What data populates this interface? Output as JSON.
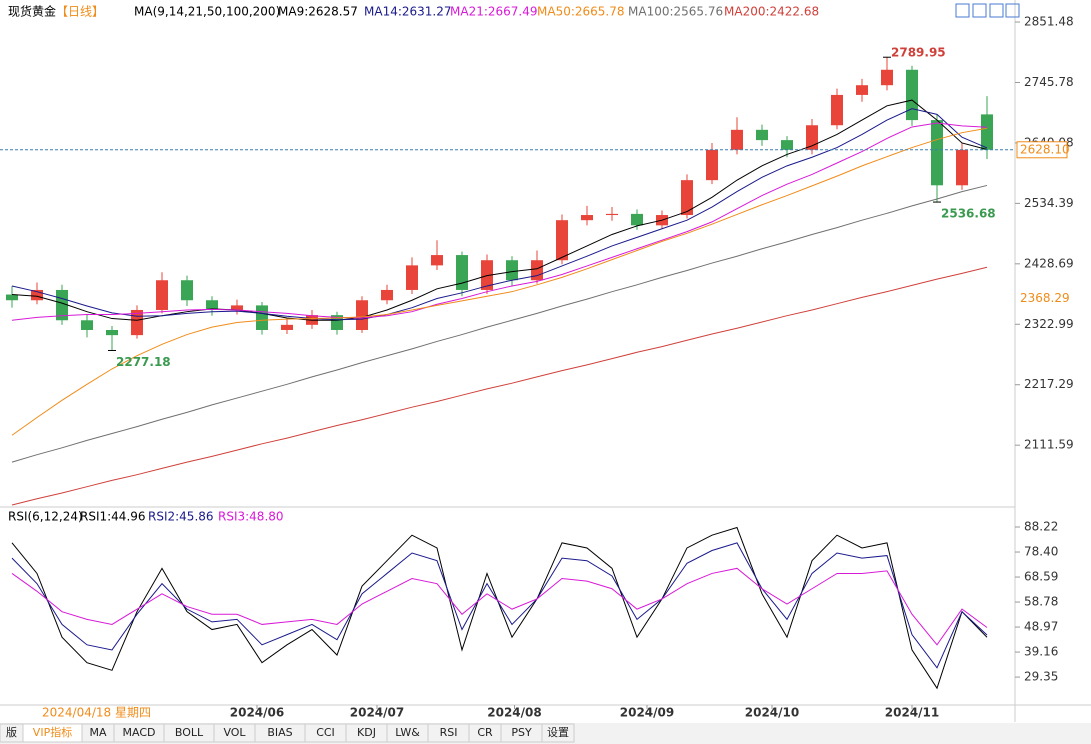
{
  "header": {
    "title": "现货黄金",
    "period": "【日线】",
    "ma_params": "MA(9,14,21,50,100,200)"
  },
  "chart_data": [
    {
      "type": "candlestick",
      "up_color": "#e8443a",
      "down_color": "#3aa655",
      "ohlc": [
        [
          2375,
          2390,
          2352,
          2365
        ],
        [
          2365,
          2396,
          2358,
          2383
        ],
        [
          2383,
          2392,
          2322,
          2330
        ],
        [
          2330,
          2340,
          2300,
          2313
        ],
        [
          2313,
          2320,
          2277.18,
          2304
        ],
        [
          2304,
          2356,
          2298,
          2348
        ],
        [
          2348,
          2414,
          2342,
          2400
        ],
        [
          2400,
          2408,
          2355,
          2365
        ],
        [
          2365,
          2372,
          2338,
          2348
        ],
        [
          2348,
          2366,
          2340,
          2356
        ],
        [
          2356,
          2362,
          2305,
          2313
        ],
        [
          2313,
          2332,
          2306,
          2322
        ],
        [
          2322,
          2348,
          2315,
          2339
        ],
        [
          2339,
          2345,
          2305,
          2313
        ],
        [
          2313,
          2372,
          2308,
          2365
        ],
        [
          2365,
          2392,
          2358,
          2383
        ],
        [
          2383,
          2440,
          2376,
          2426
        ],
        [
          2426,
          2470,
          2418,
          2444
        ],
        [
          2444,
          2450,
          2372,
          2383
        ],
        [
          2383,
          2445,
          2376,
          2435
        ],
        [
          2435,
          2442,
          2390,
          2400
        ],
        [
          2400,
          2452,
          2394,
          2435
        ],
        [
          2435,
          2515,
          2428,
          2505
        ],
        [
          2505,
          2530,
          2496,
          2514
        ],
        [
          2514,
          2528,
          2504,
          2516
        ],
        [
          2516,
          2524,
          2488,
          2496
        ],
        [
          2496,
          2522,
          2490,
          2514
        ],
        [
          2514,
          2585,
          2508,
          2575
        ],
        [
          2575,
          2640,
          2568,
          2628
        ],
        [
          2628,
          2685,
          2620,
          2663
        ],
        [
          2663,
          2672,
          2635,
          2645
        ],
        [
          2645,
          2652,
          2615,
          2628
        ],
        [
          2628,
          2682,
          2620,
          2671
        ],
        [
          2671,
          2735,
          2664,
          2724
        ],
        [
          2724,
          2752,
          2712,
          2741
        ],
        [
          2741,
          2789.95,
          2732,
          2768
        ],
        [
          2768,
          2775,
          2670,
          2680
        ],
        [
          2680,
          2690,
          2536.68,
          2566
        ],
        [
          2566,
          2640,
          2558,
          2628
        ],
        [
          2690,
          2722,
          2612,
          2628.1
        ]
      ],
      "series": [
        {
          "name": "MA9:2628.57",
          "color": "#000000",
          "values": [
            2375,
            2372,
            2360,
            2345,
            2333,
            2330,
            2338,
            2345,
            2350,
            2348,
            2342,
            2334,
            2330,
            2330,
            2335,
            2348,
            2365,
            2385,
            2395,
            2408,
            2415,
            2420,
            2440,
            2460,
            2480,
            2495,
            2505,
            2520,
            2545,
            2575,
            2600,
            2620,
            2635,
            2655,
            2680,
            2705,
            2715,
            2680,
            2640,
            2628.57
          ]
        },
        {
          "name": "MA14:2631.27",
          "color": "#1a1a8c",
          "values": [
            2390,
            2380,
            2368,
            2355,
            2343,
            2337,
            2338,
            2342,
            2345,
            2346,
            2342,
            2337,
            2333,
            2331,
            2332,
            2340,
            2352,
            2368,
            2378,
            2390,
            2400,
            2408,
            2425,
            2442,
            2460,
            2475,
            2490,
            2505,
            2528,
            2555,
            2580,
            2600,
            2615,
            2632,
            2655,
            2680,
            2700,
            2690,
            2650,
            2631.27
          ]
        },
        {
          "name": "MA21:2667.49",
          "color": "#d81ad8",
          "values": [
            2330,
            2335,
            2338,
            2340,
            2340,
            2342,
            2345,
            2348,
            2349,
            2348,
            2345,
            2342,
            2338,
            2335,
            2334,
            2338,
            2345,
            2358,
            2368,
            2380,
            2390,
            2398,
            2410,
            2425,
            2440,
            2455,
            2470,
            2485,
            2502,
            2525,
            2548,
            2568,
            2585,
            2605,
            2625,
            2648,
            2668,
            2675,
            2670,
            2667.49
          ]
        },
        {
          "name": "MA50:2665.78",
          "color": "#f08c1a",
          "values": [
            2129,
            2160,
            2190,
            2218,
            2245,
            2268,
            2288,
            2305,
            2318,
            2326,
            2330,
            2332,
            2333,
            2334,
            2336,
            2340,
            2348,
            2356,
            2364,
            2372,
            2380,
            2392,
            2405,
            2420,
            2436,
            2452,
            2468,
            2482,
            2498,
            2515,
            2532,
            2548,
            2565,
            2582,
            2600,
            2616,
            2632,
            2646,
            2658,
            2665.78
          ]
        },
        {
          "name": "MA100:2565.76",
          "color": "#707070",
          "values": [
            2082,
            2095,
            2107,
            2120,
            2132,
            2144,
            2157,
            2169,
            2182,
            2194,
            2206,
            2218,
            2231,
            2243,
            2256,
            2268,
            2280,
            2293,
            2305,
            2318,
            2330,
            2342,
            2355,
            2367,
            2380,
            2392,
            2405,
            2417,
            2430,
            2442,
            2455,
            2467,
            2480,
            2492,
            2505,
            2517,
            2530,
            2542,
            2555,
            2565.76
          ]
        },
        {
          "name": "MA200:2422.68",
          "color": "#d0403a",
          "values": [
            2007,
            2018,
            2028,
            2039,
            2050,
            2060,
            2071,
            2082,
            2092,
            2103,
            2114,
            2124,
            2135,
            2146,
            2156,
            2167,
            2178,
            2188,
            2199,
            2210,
            2220,
            2231,
            2242,
            2252,
            2263,
            2274,
            2284,
            2295,
            2306,
            2316,
            2327,
            2338,
            2348,
            2359,
            2370,
            2380,
            2391,
            2402,
            2412,
            2422.68
          ]
        }
      ],
      "ylim": [
        2007,
        2876
      ],
      "yticks": [
        2851.48,
        2745.78,
        2640.08,
        2534.39,
        2428.69,
        2322.99,
        2217.29,
        2111.59
      ],
      "annotations": [
        {
          "value": 2789.95,
          "color": "#d0403a"
        },
        {
          "value": 2536.68,
          "color": "#3a9a50"
        },
        {
          "value": 2277.18,
          "color": "#3a9a50"
        }
      ],
      "last_price": {
        "value": 2628.1,
        "label": "2628.10",
        "color": "#f08c1a"
      },
      "marker": {
        "value": 2368.29,
        "color": "#f08c1a"
      }
    },
    {
      "type": "line",
      "title": "RSI(6,12,24)",
      "series": [
        {
          "name": "RSI1:44.96",
          "color": "#000000",
          "values": [
            82,
            70,
            45,
            35,
            32,
            55,
            72,
            55,
            48,
            50,
            35,
            42,
            48,
            38,
            65,
            75,
            85,
            80,
            40,
            70,
            45,
            60,
            82,
            80,
            72,
            45,
            60,
            80,
            85,
            88,
            62,
            45,
            75,
            85,
            80,
            82,
            40,
            25,
            55,
            44.96
          ]
        },
        {
          "name": "RSI2:45.86",
          "color": "#1a1a8c",
          "values": [
            76,
            66,
            50,
            42,
            40,
            54,
            66,
            56,
            51,
            52,
            42,
            46,
            50,
            44,
            62,
            70,
            78,
            75,
            48,
            66,
            50,
            60,
            76,
            75,
            69,
            52,
            60,
            74,
            79,
            82,
            64,
            52,
            70,
            78,
            76,
            77,
            46,
            33,
            55,
            45.86
          ]
        },
        {
          "name": "RSI3:48.80",
          "color": "#d81ad8",
          "values": [
            70,
            63,
            55,
            52,
            50,
            56,
            62,
            57,
            54,
            54,
            50,
            51,
            52,
            50,
            58,
            63,
            68,
            66,
            54,
            62,
            56,
            60,
            68,
            67,
            64,
            56,
            60,
            66,
            70,
            72,
            64,
            58,
            64,
            70,
            70,
            71,
            54,
            42,
            56,
            48.8
          ]
        }
      ],
      "ylim": [
        18.4,
        94.1
      ],
      "yticks": [
        88.22,
        {
          "value": 78.4,
          "label": "78.40"
        },
        68.59,
        58.78,
        48.97,
        39.16,
        29.35
      ],
      "xticks": [
        {
          "value": 9.8,
          "label": "2024/06"
        },
        {
          "value": 14.6,
          "label": "2024/07"
        },
        {
          "value": 20.1,
          "label": "2024/08"
        },
        {
          "value": 25.4,
          "label": "2024/09"
        },
        {
          "value": 30.4,
          "label": "2024/10"
        },
        {
          "value": 36,
          "label": "2024/11"
        }
      ],
      "cursor_date": "2024/04/18 星期四"
    }
  ],
  "tabs": [
    "版",
    "VIP指标",
    "MA",
    "MACD",
    "BOLL",
    "VOL",
    "BIAS",
    "CCI",
    "KDJ",
    "LW&",
    "RSI",
    "CR",
    "PSY",
    "设置"
  ]
}
